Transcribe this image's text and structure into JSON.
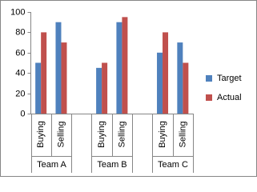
{
  "chart_data": {
    "type": "bar",
    "categories": [
      "Buying",
      "Selling",
      null,
      "Buying",
      "Selling",
      null,
      "Buying",
      "Selling"
    ],
    "category_groups": [
      "Team A",
      "Team B",
      "Team C"
    ],
    "series": [
      {
        "name": "Target",
        "color": "#4f81bd",
        "values": [
          50,
          90,
          null,
          45,
          90,
          null,
          60,
          70
        ]
      },
      {
        "name": "Actual",
        "color": "#c0504d",
        "values": [
          80,
          70,
          null,
          50,
          95,
          null,
          80,
          50
        ]
      }
    ],
    "ylim": [
      0,
      100
    ],
    "yticks": [
      0,
      20,
      40,
      60,
      80,
      100
    ],
    "legend": "right"
  }
}
